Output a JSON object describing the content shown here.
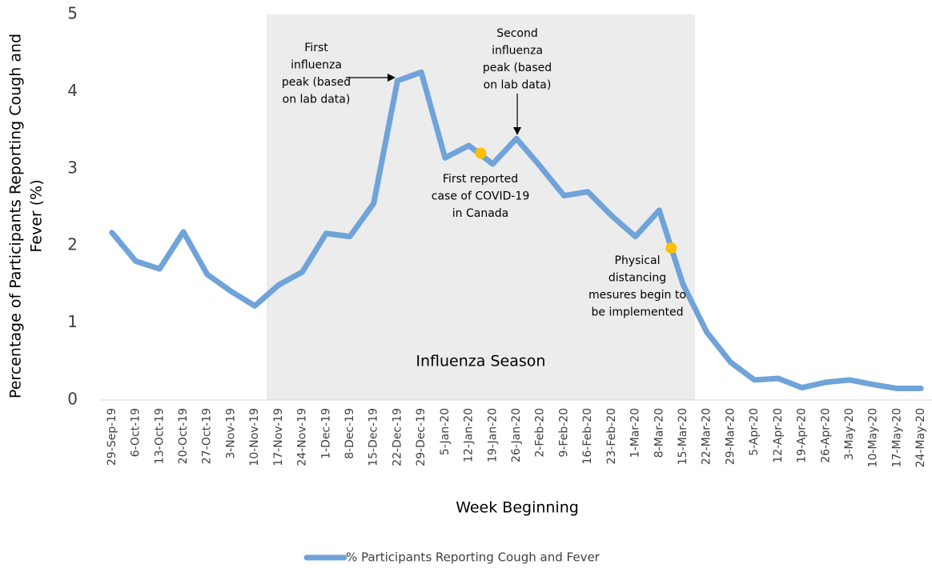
{
  "chart_data": {
    "type": "line",
    "x_label": "Week Beginning",
    "y_label": [
      "Percentage of Participants Reporting Cough and",
      "Fever (%)"
    ],
    "categories": [
      "29-Sep-19",
      "6-Oct-19",
      "13-Oct-19",
      "20-Oct-19",
      "27-Oct-19",
      "3-Nov-19",
      "10-Nov-19",
      "17-Nov-19",
      "24-Nov-19",
      "1-Dec-19",
      "8-Dec-19",
      "15-Dec-19",
      "22-Dec-19",
      "29-Dec-19",
      "5-Jan-20",
      "12-Jan-20",
      "19-Jan-20",
      "26-Jan-20",
      "2-Feb-20",
      "9-Feb-20",
      "16-Feb-20",
      "23-Feb-20",
      "1-Mar-20",
      "8-Mar-20",
      "15-Mar-20",
      "22-Mar-20",
      "29-Mar-20",
      "5-Apr-20",
      "12-Apr-20",
      "19-Apr-20",
      "26-Apr-20",
      "3-May-20",
      "10-May-20",
      "17-May-20",
      "24-May-20"
    ],
    "series": [
      {
        "name": "% Participants Reporting Cough and Fever",
        "color": "#6fa3d9",
        "values": [
          2.17,
          1.8,
          1.7,
          2.18,
          1.63,
          1.41,
          1.22,
          1.49,
          1.66,
          2.16,
          2.12,
          2.55,
          4.14,
          4.25,
          3.14,
          3.3,
          3.06,
          3.39,
          3.03,
          2.65,
          2.7,
          2.39,
          2.12,
          2.46,
          1.5,
          0.88,
          0.49,
          0.26,
          0.28,
          0.16,
          0.23,
          0.26,
          0.2,
          0.15,
          0.15
        ]
      }
    ],
    "ylim": [
      0,
      5
    ],
    "yticks": [
      0,
      1,
      2,
      3,
      4,
      5
    ],
    "shaded_region": {
      "from": "17-Nov-19",
      "to": "15-Mar-20",
      "label": "Influenza Season",
      "color": "#ececec"
    },
    "markers": [
      {
        "category": "12-Jan-20",
        "value": 3.2,
        "color": "#ffc000"
      },
      {
        "category": "8-Mar-20",
        "value": 1.97,
        "color": "#ffc000"
      }
    ],
    "annotations": [
      {
        "lines": [
          "First",
          "influenza",
          "peak (based",
          "on lab data)"
        ]
      },
      {
        "lines": [
          "Second",
          "influenza",
          "peak (based",
          "on lab data)"
        ]
      },
      {
        "lines": [
          "First reported",
          "case of COVID-19",
          "in Canada"
        ]
      },
      {
        "lines": [
          "Physical",
          "distancing",
          "mesures begin to",
          "be implemented"
        ]
      }
    ],
    "legend": "bottom"
  }
}
